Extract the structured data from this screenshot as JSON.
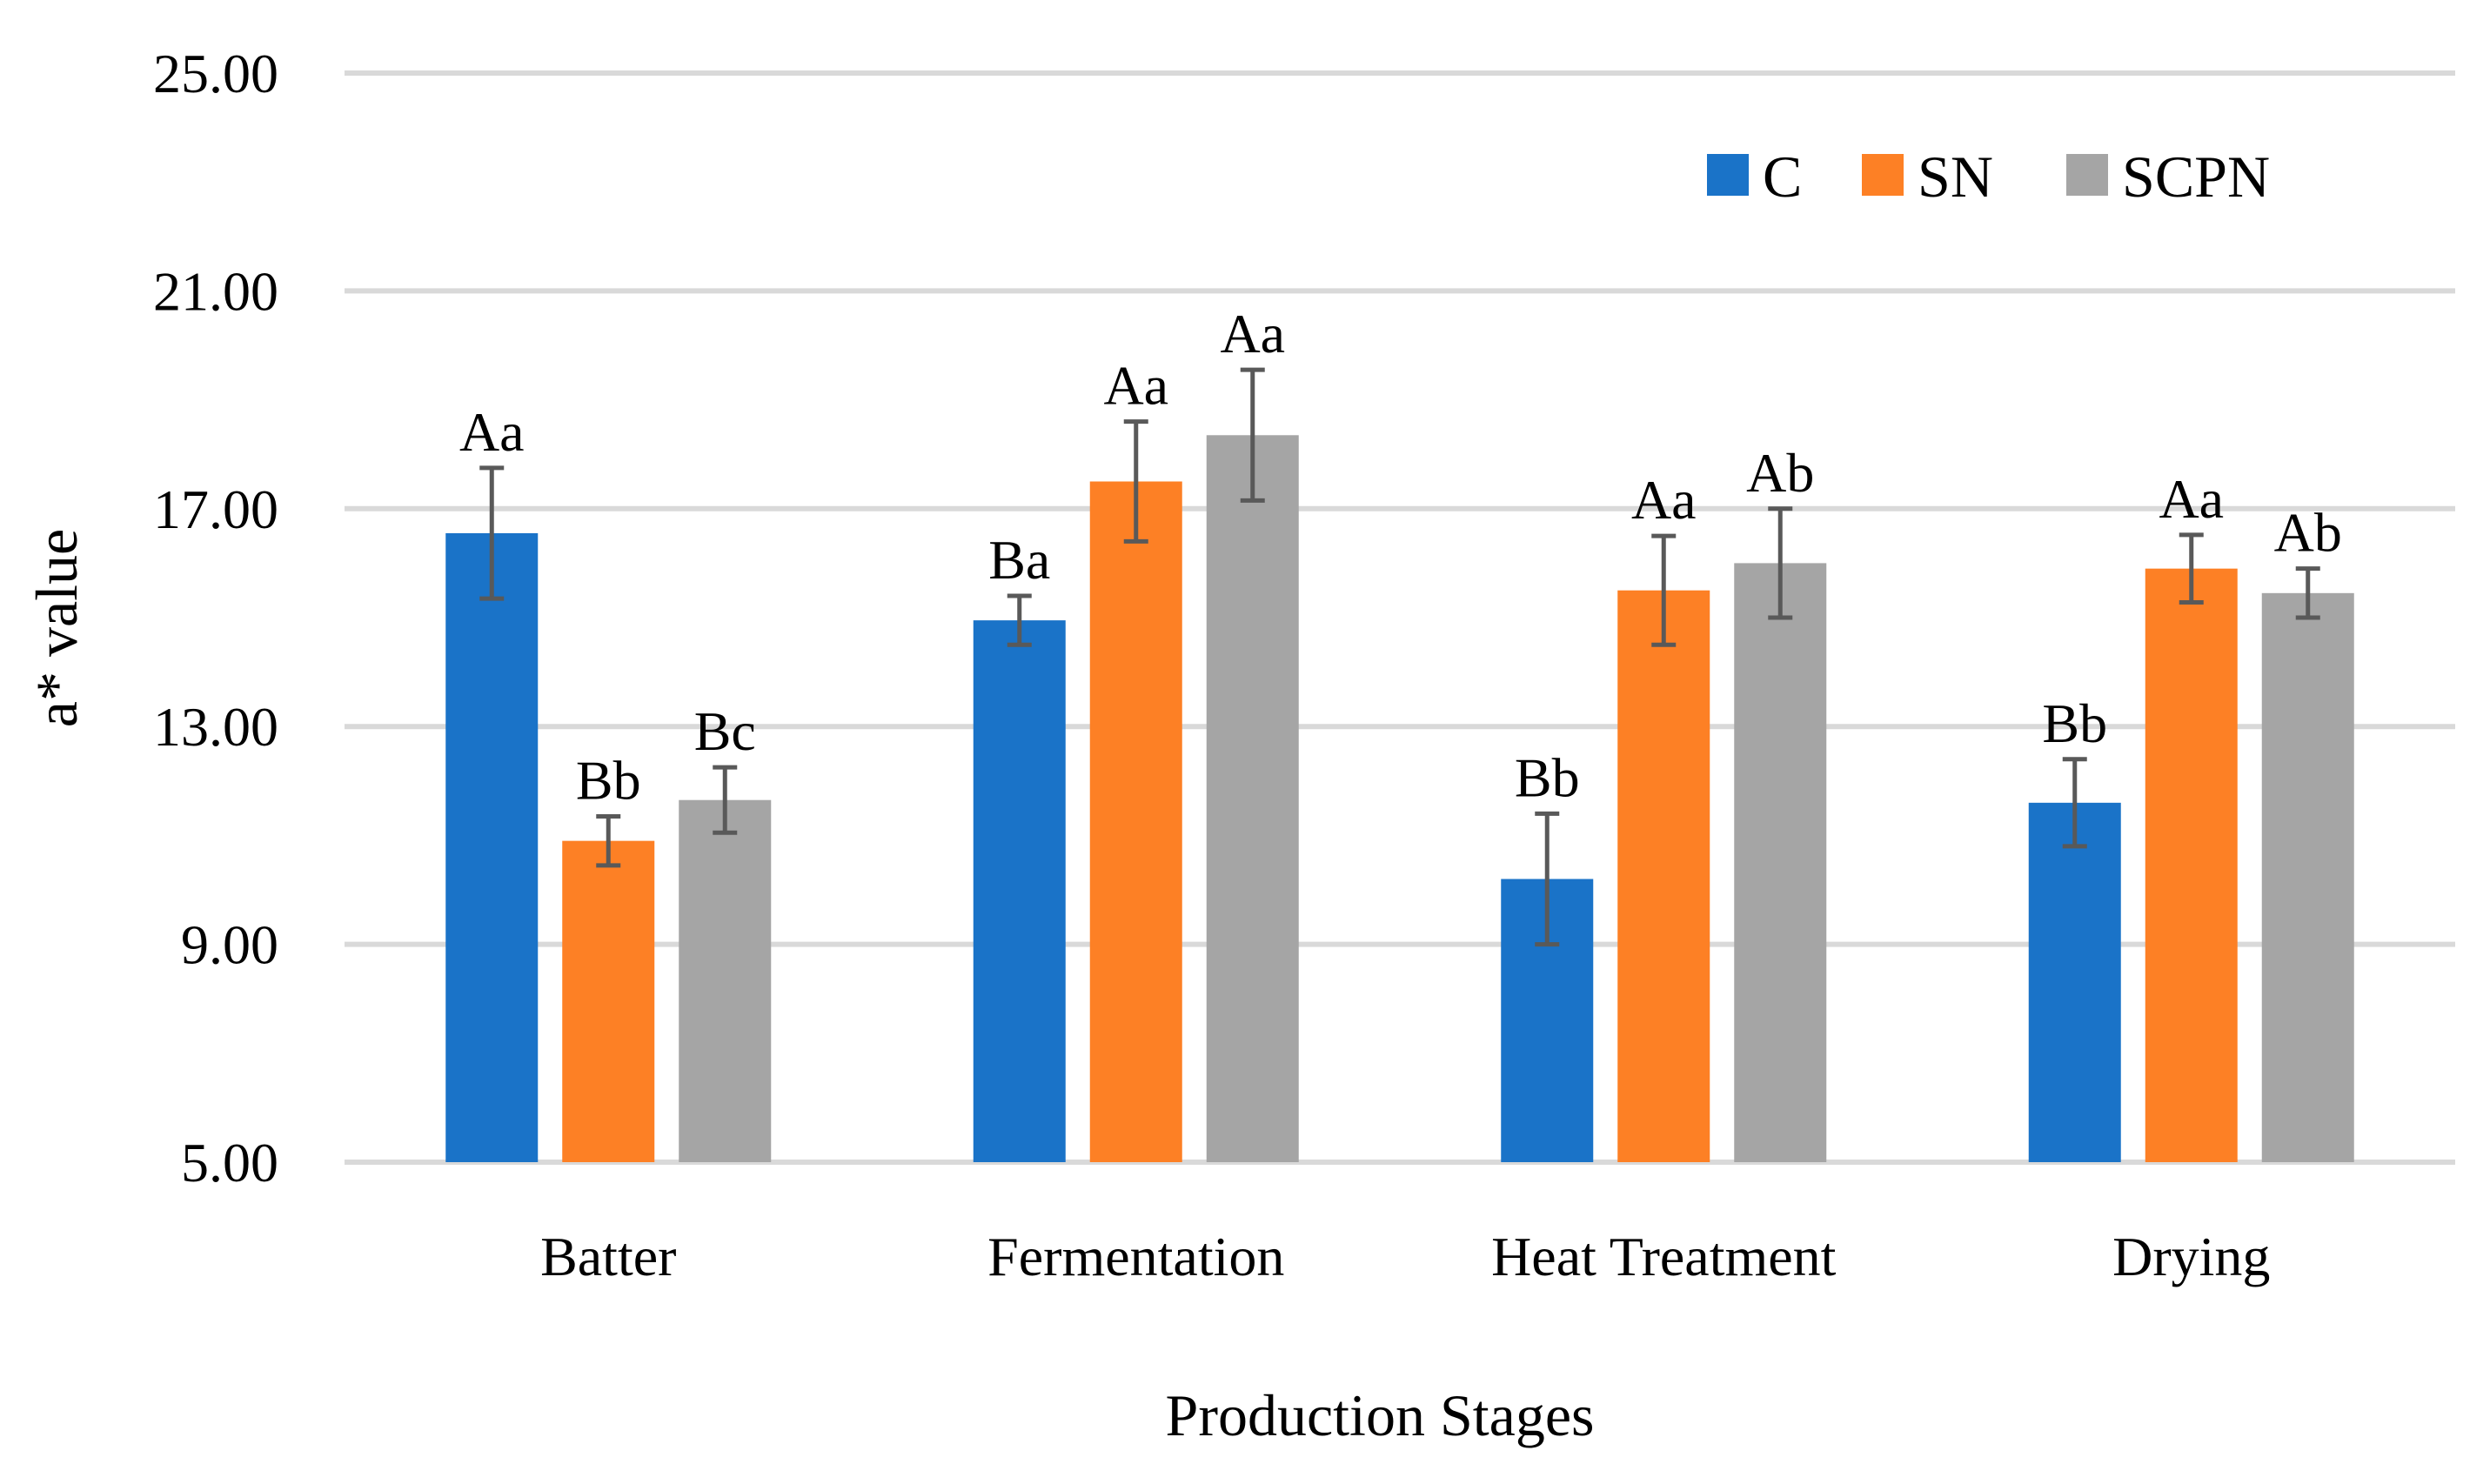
{
  "chart_data": {
    "type": "bar",
    "xlabel": "Production Stages",
    "ylabel": "a*  value",
    "ylim": [
      5,
      25
    ],
    "yticks": [
      "5.00",
      "9.00",
      "13.00",
      "17.00",
      "21.00",
      "25.00"
    ],
    "ytick_values": [
      5,
      9,
      13,
      17,
      21,
      25
    ],
    "grid": true,
    "legend_position": "top-right",
    "categories": [
      "Batter",
      "Fermentation",
      "Heat Treatment",
      "Drying"
    ],
    "series": [
      {
        "name": "C",
        "color": "#1a73c8",
        "values": [
          16.55,
          14.95,
          10.2,
          11.6
        ],
        "errors": [
          1.2,
          0.45,
          1.2,
          0.8
        ],
        "labels": [
          "Aa",
          "Ba",
          "Bb",
          "Bb"
        ]
      },
      {
        "name": "SN",
        "color": "#fd8025",
        "values": [
          10.9,
          17.5,
          15.5,
          15.9
        ],
        "errors": [
          0.45,
          1.1,
          1.0,
          0.62
        ],
        "labels": [
          "Bb",
          "Aa",
          "Aa",
          "Aa"
        ]
      },
      {
        "name": "SCPN",
        "color": "#a5a5a5",
        "values": [
          11.65,
          18.35,
          16.0,
          15.45
        ],
        "errors": [
          0.6,
          1.2,
          1.0,
          0.45
        ],
        "labels": [
          "Bc",
          "Aa",
          "Ab",
          "Ab"
        ]
      }
    ]
  }
}
